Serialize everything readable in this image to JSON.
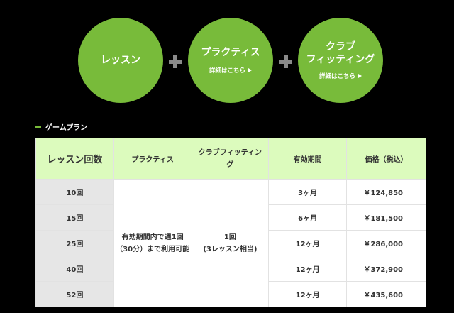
{
  "circles": [
    {
      "title": "レッスン"
    },
    {
      "title": "プラクティス",
      "detail": "詳細はこちら"
    },
    {
      "title_line1": "クラブ",
      "title_line2": "フィッティング",
      "detail": "詳細はこちら"
    }
  ],
  "section_title": "ゲームプラン",
  "table": {
    "headers": [
      "レッスン回数",
      "プラクティス",
      "クラブフィッティング",
      "有効期間",
      "価格（税込）"
    ],
    "practice": "有効期間内で週1回（30分）まで利用可能",
    "fitting_line1": "1回",
    "fitting_line2": "(3レッスン相当)",
    "rows": [
      {
        "count": "10回",
        "period": "3ヶ月",
        "price": "￥124,850"
      },
      {
        "count": "15回",
        "period": "6ヶ月",
        "price": "￥181,500"
      },
      {
        "count": "25回",
        "period": "12ヶ月",
        "price": "￥286,000"
      },
      {
        "count": "40回",
        "period": "12ヶ月",
        "price": "￥372,900"
      },
      {
        "count": "52回",
        "period": "12ヶ月",
        "price": "￥435,600"
      }
    ]
  },
  "colors": {
    "accent": "#78bb3a",
    "header_bg": "#dcfbbd",
    "count_bg": "#e6e6e6"
  }
}
